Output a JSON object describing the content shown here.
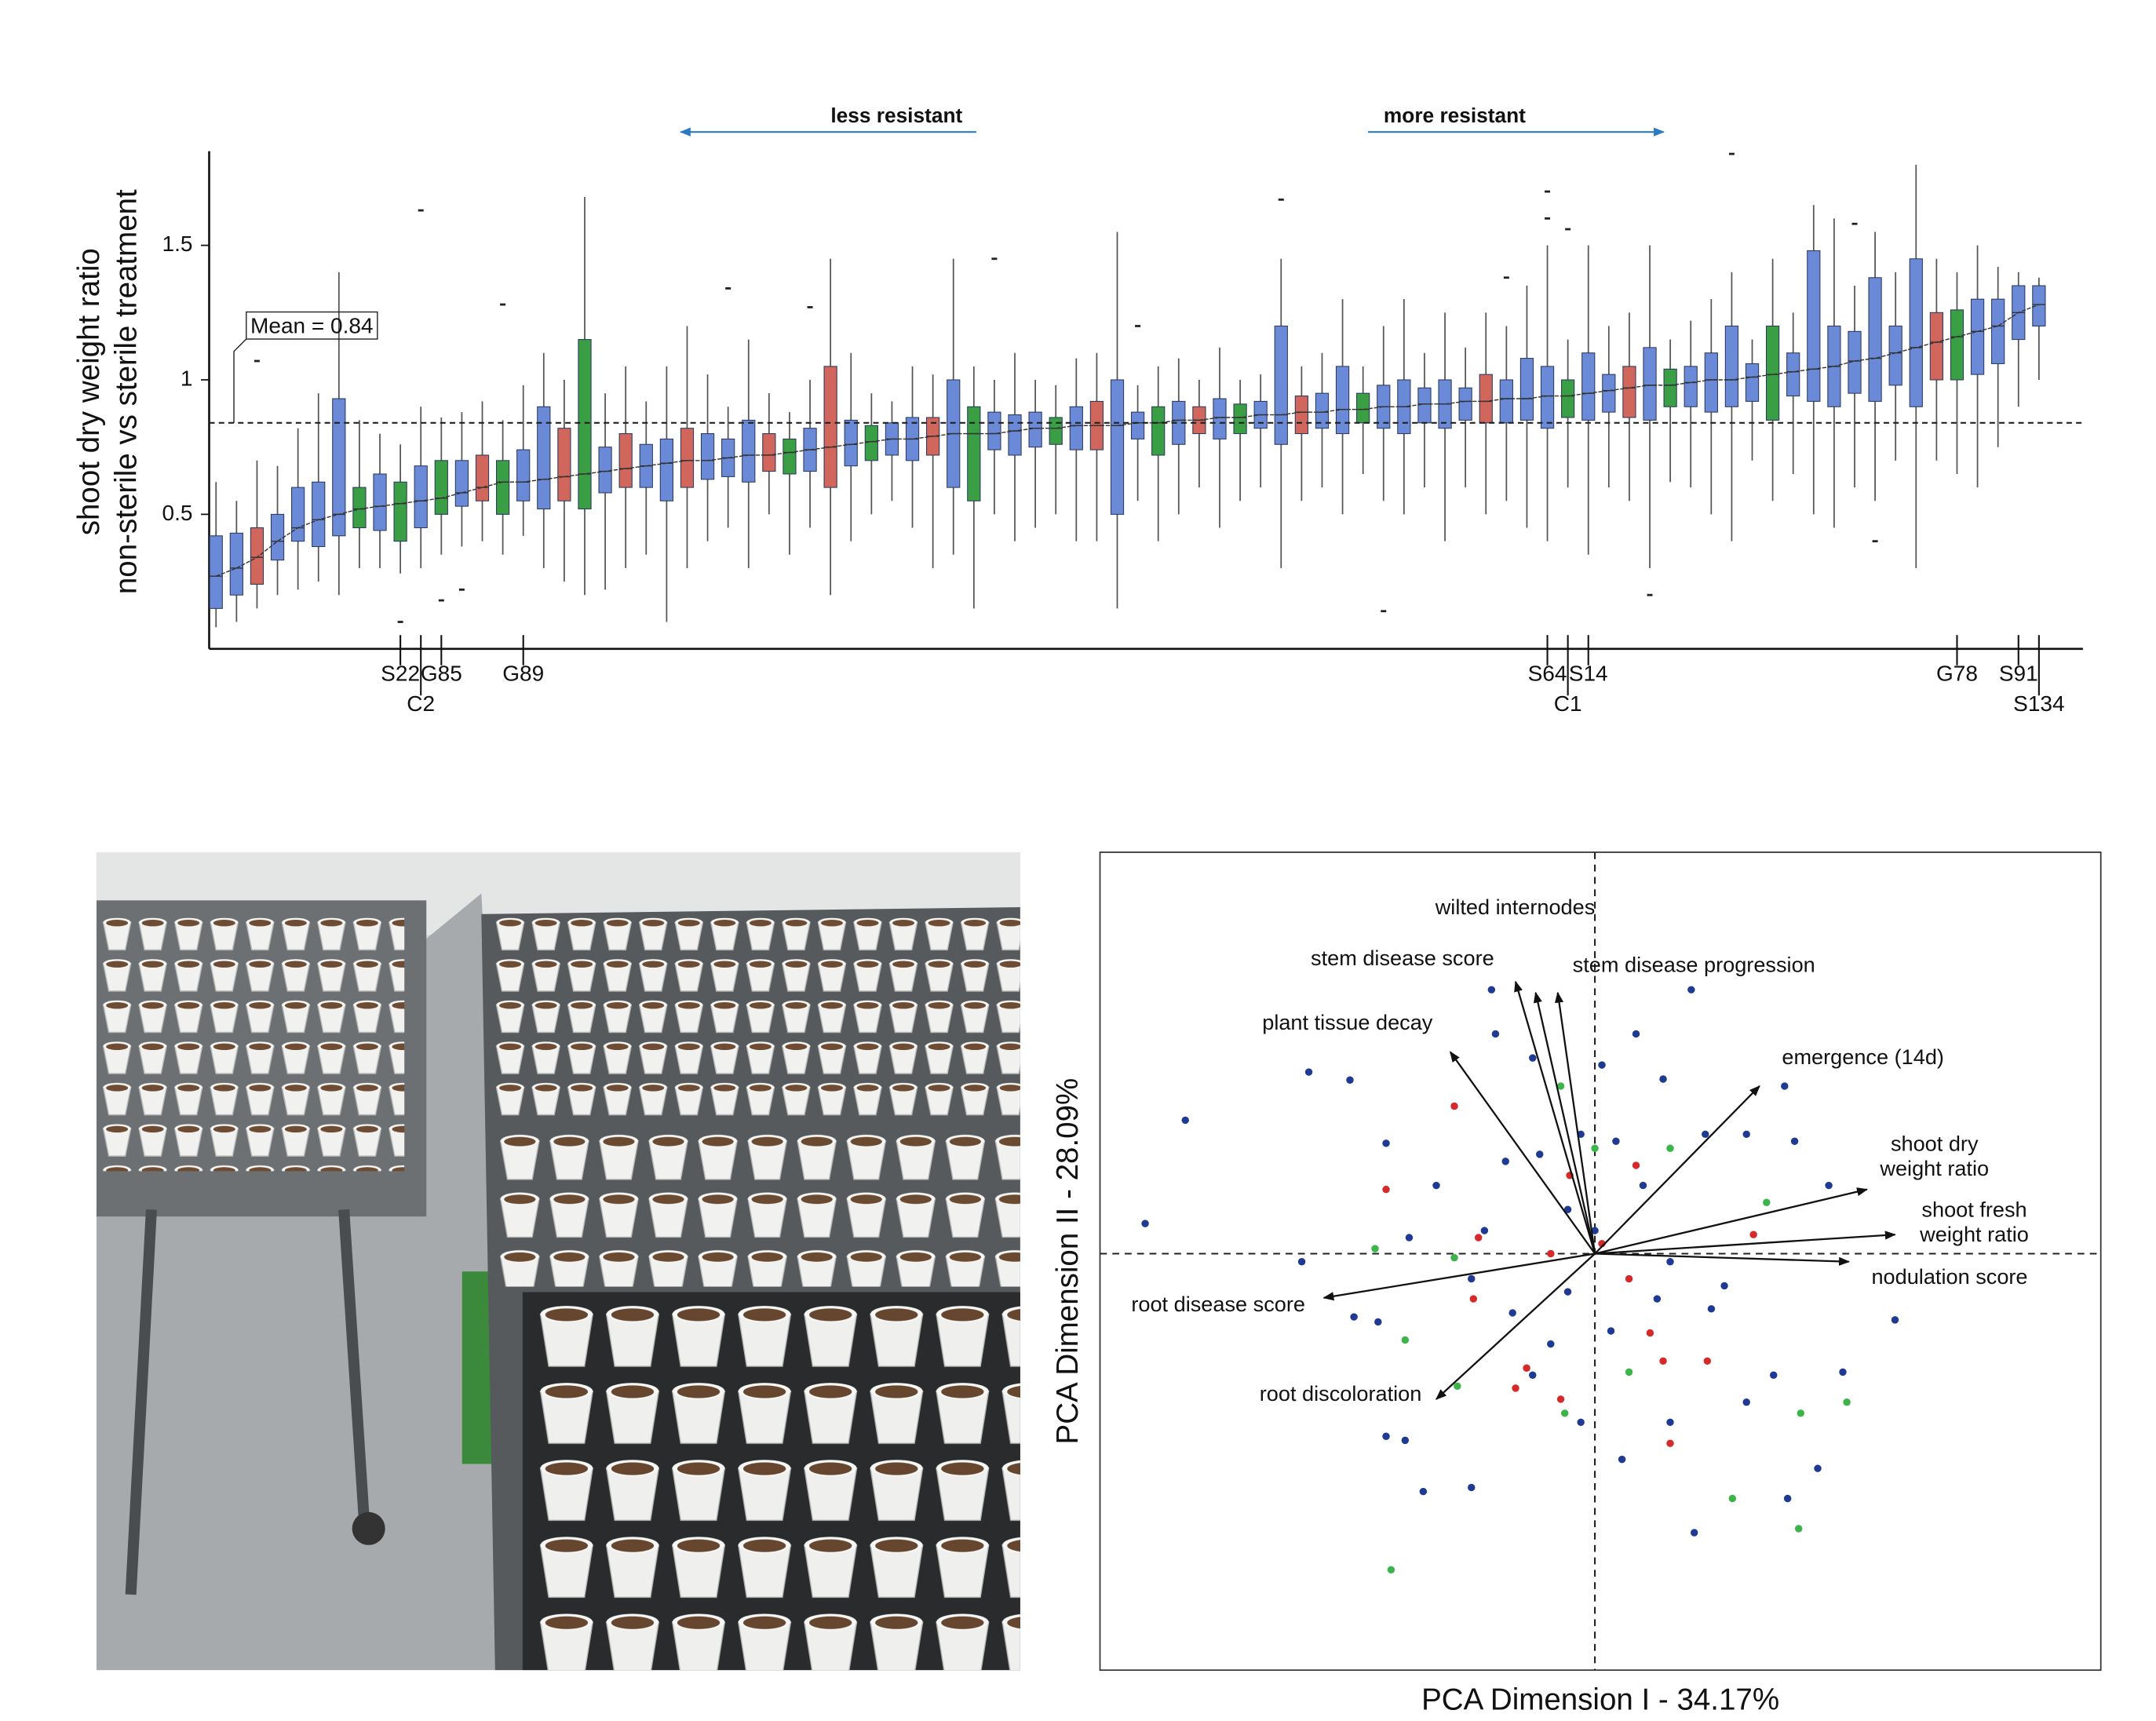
{
  "chart_data": [
    {
      "type": "box",
      "ylabel": [
        "shoot dry weight ratio",
        "non-sterile vs sterile treatment"
      ],
      "ylim": [
        0,
        1.85
      ],
      "yticks": [
        0.5,
        1,
        1.5
      ],
      "mean": 0.84,
      "mean_label": "Mean = 0.84",
      "annotations": [
        "less resistant",
        "more resistant"
      ],
      "annotation_color": "#2a7bc4",
      "palette": [
        "#6a8ad8",
        "#d0665c",
        "#3a9e45"
      ],
      "categories": [
        null,
        null,
        null,
        null,
        null,
        null,
        null,
        null,
        null,
        "S22",
        "C2",
        "G85",
        null,
        null,
        null,
        "G89",
        null,
        null,
        null,
        null,
        null,
        null,
        null,
        null,
        null,
        null,
        null,
        null,
        null,
        null,
        null,
        null,
        null,
        null,
        null,
        null,
        null,
        null,
        null,
        null,
        null,
        null,
        null,
        null,
        null,
        null,
        null,
        null,
        null,
        null,
        null,
        null,
        null,
        null,
        null,
        null,
        null,
        null,
        null,
        null,
        null,
        null,
        null,
        null,
        null,
        "S64",
        "C1",
        "S14",
        null,
        null,
        null,
        null,
        null,
        null,
        null,
        null,
        null,
        null,
        null,
        null,
        null,
        null,
        null,
        null,
        null,
        "G78",
        null,
        null,
        "S91",
        "S134"
      ],
      "boxes": [
        [
          0.08,
          0.15,
          0.27,
          0.42,
          0.62
        ],
        [
          0.1,
          0.2,
          0.3,
          0.43,
          0.55
        ],
        [
          0.15,
          0.24,
          0.34,
          0.45,
          0.7
        ],
        [
          0.2,
          0.33,
          0.4,
          0.5,
          0.68
        ],
        [
          0.22,
          0.4,
          0.45,
          0.6,
          0.82
        ],
        [
          0.25,
          0.38,
          0.48,
          0.62,
          0.95
        ],
        [
          0.2,
          0.42,
          0.5,
          0.93,
          1.4
        ],
        [
          0.3,
          0.45,
          0.52,
          0.6,
          0.85
        ],
        [
          0.3,
          0.44,
          0.53,
          0.65,
          0.8
        ],
        [
          0.28,
          0.4,
          0.54,
          0.62,
          0.76
        ],
        [
          0.3,
          0.45,
          0.55,
          0.68,
          0.9
        ],
        [
          0.35,
          0.5,
          0.56,
          0.7,
          0.86
        ],
        [
          0.38,
          0.53,
          0.58,
          0.7,
          0.88
        ],
        [
          0.4,
          0.55,
          0.6,
          0.72,
          0.92
        ],
        [
          0.35,
          0.5,
          0.62,
          0.7,
          0.85
        ],
        [
          0.42,
          0.55,
          0.62,
          0.74,
          0.98
        ],
        [
          0.3,
          0.52,
          0.63,
          0.9,
          1.1
        ],
        [
          0.25,
          0.55,
          0.64,
          0.82,
          1.0
        ],
        [
          0.2,
          0.52,
          0.65,
          1.15,
          1.68
        ],
        [
          0.22,
          0.58,
          0.66,
          0.75,
          0.95
        ],
        [
          0.3,
          0.6,
          0.67,
          0.8,
          1.05
        ],
        [
          0.35,
          0.6,
          0.68,
          0.76,
          0.92
        ],
        [
          0.1,
          0.55,
          0.69,
          0.78,
          1.05
        ],
        [
          0.3,
          0.6,
          0.7,
          0.82,
          1.2
        ],
        [
          0.4,
          0.63,
          0.7,
          0.8,
          1.02
        ],
        [
          0.45,
          0.64,
          0.71,
          0.78,
          0.9
        ],
        [
          0.3,
          0.62,
          0.72,
          0.85,
          1.15
        ],
        [
          0.5,
          0.66,
          0.72,
          0.8,
          0.95
        ],
        [
          0.35,
          0.65,
          0.73,
          0.78,
          0.88
        ],
        [
          0.45,
          0.66,
          0.74,
          0.82,
          1.0
        ],
        [
          0.2,
          0.6,
          0.75,
          1.05,
          1.45
        ],
        [
          0.4,
          0.68,
          0.76,
          0.85,
          1.1
        ],
        [
          0.5,
          0.7,
          0.77,
          0.83,
          0.95
        ],
        [
          0.55,
          0.72,
          0.78,
          0.84,
          0.92
        ],
        [
          0.45,
          0.7,
          0.78,
          0.86,
          1.05
        ],
        [
          0.3,
          0.72,
          0.79,
          0.86,
          1.02
        ],
        [
          0.35,
          0.6,
          0.8,
          1.0,
          1.45
        ],
        [
          0.15,
          0.55,
          0.8,
          0.9,
          1.05
        ],
        [
          0.5,
          0.74,
          0.8,
          0.88,
          1.0
        ],
        [
          0.4,
          0.72,
          0.81,
          0.87,
          1.1
        ],
        [
          0.45,
          0.75,
          0.82,
          0.88,
          1.0
        ],
        [
          0.5,
          0.76,
          0.82,
          0.86,
          0.98
        ],
        [
          0.4,
          0.74,
          0.83,
          0.9,
          1.08
        ],
        [
          0.4,
          0.74,
          0.83,
          0.92,
          1.1
        ],
        [
          0.15,
          0.5,
          0.83,
          1.0,
          1.55
        ],
        [
          0.55,
          0.78,
          0.84,
          0.88,
          0.98
        ],
        [
          0.4,
          0.72,
          0.84,
          0.9,
          1.05
        ],
        [
          0.5,
          0.76,
          0.85,
          0.92,
          1.08
        ],
        [
          0.6,
          0.8,
          0.85,
          0.9,
          1.0
        ],
        [
          0.45,
          0.78,
          0.86,
          0.93,
          1.12
        ],
        [
          0.55,
          0.8,
          0.86,
          0.91,
          1.0
        ],
        [
          0.6,
          0.82,
          0.87,
          0.92,
          1.02
        ],
        [
          0.3,
          0.76,
          0.87,
          1.2,
          1.45
        ],
        [
          0.55,
          0.8,
          0.88,
          0.94,
          1.05
        ],
        [
          0.6,
          0.82,
          0.88,
          0.95,
          1.1
        ],
        [
          0.5,
          0.8,
          0.89,
          1.05,
          1.3
        ],
        [
          0.65,
          0.84,
          0.89,
          0.95,
          1.05
        ],
        [
          0.55,
          0.82,
          0.9,
          0.98,
          1.2
        ],
        [
          0.5,
          0.8,
          0.9,
          1.0,
          1.3
        ],
        [
          0.6,
          0.84,
          0.91,
          0.97,
          1.1
        ],
        [
          0.4,
          0.82,
          0.91,
          1.0,
          1.25
        ],
        [
          0.6,
          0.85,
          0.92,
          0.97,
          1.12
        ],
        [
          0.5,
          0.84,
          0.92,
          1.02,
          1.25
        ],
        [
          0.55,
          0.84,
          0.93,
          1.0,
          1.2
        ],
        [
          0.45,
          0.85,
          0.93,
          1.08,
          1.35
        ],
        [
          0.4,
          0.82,
          0.94,
          1.05,
          1.5
        ],
        [
          0.6,
          0.86,
          0.94,
          1.0,
          1.15
        ],
        [
          0.35,
          0.85,
          0.95,
          1.1,
          1.5
        ],
        [
          0.6,
          0.88,
          0.96,
          1.02,
          1.2
        ],
        [
          0.55,
          0.86,
          0.97,
          1.05,
          1.25
        ],
        [
          0.3,
          0.85,
          0.98,
          1.12,
          1.5
        ],
        [
          0.62,
          0.9,
          0.98,
          1.04,
          1.15
        ],
        [
          0.6,
          0.9,
          0.99,
          1.05,
          1.22
        ],
        [
          0.5,
          0.88,
          1.0,
          1.1,
          1.3
        ],
        [
          0.4,
          0.9,
          1.0,
          1.2,
          1.4
        ],
        [
          0.7,
          0.92,
          1.01,
          1.06,
          1.15
        ],
        [
          0.55,
          0.85,
          1.02,
          1.2,
          1.45
        ],
        [
          0.65,
          0.94,
          1.03,
          1.1,
          1.25
        ],
        [
          0.5,
          0.92,
          1.04,
          1.48,
          1.65
        ],
        [
          0.45,
          0.9,
          1.05,
          1.2,
          1.6
        ],
        [
          0.6,
          0.95,
          1.07,
          1.18,
          1.35
        ],
        [
          0.55,
          0.92,
          1.08,
          1.38,
          1.55
        ],
        [
          0.7,
          0.98,
          1.1,
          1.2,
          1.4
        ],
        [
          0.3,
          0.9,
          1.12,
          1.45,
          1.8
        ],
        [
          0.7,
          1.0,
          1.14,
          1.25,
          1.45
        ],
        [
          0.65,
          1.0,
          1.16,
          1.26,
          1.4
        ],
        [
          0.6,
          1.02,
          1.18,
          1.3,
          1.5
        ],
        [
          0.75,
          1.06,
          1.2,
          1.3,
          1.42
        ],
        [
          0.9,
          1.15,
          1.25,
          1.35,
          1.4
        ],
        [
          1.0,
          1.2,
          1.28,
          1.35,
          1.38
        ]
      ],
      "box_color": [
        0,
        0,
        1,
        0,
        0,
        0,
        0,
        2,
        0,
        2,
        0,
        2,
        0,
        1,
        2,
        0,
        0,
        1,
        2,
        0,
        1,
        0,
        0,
        1,
        0,
        0,
        0,
        1,
        2,
        0,
        1,
        0,
        2,
        0,
        0,
        1,
        0,
        2,
        0,
        0,
        0,
        2,
        0,
        1,
        0,
        0,
        2,
        0,
        1,
        0,
        2,
        0,
        0,
        1,
        0,
        0,
        2,
        0,
        0,
        0,
        0,
        0,
        1,
        0,
        0,
        0,
        2,
        0,
        0,
        1,
        0,
        2,
        0,
        0,
        0,
        0,
        2,
        0,
        0,
        0,
        0,
        0,
        0,
        0,
        1,
        2,
        0,
        0,
        0,
        0
      ],
      "outliers": [
        [
          2,
          1.07
        ],
        [
          9,
          0.1
        ],
        [
          10,
          1.63
        ],
        [
          11,
          0.18
        ],
        [
          12,
          0.22
        ],
        [
          14,
          1.28
        ],
        [
          25,
          1.34
        ],
        [
          29,
          1.27
        ],
        [
          38,
          1.45
        ],
        [
          45,
          1.2
        ],
        [
          52,
          1.67
        ],
        [
          57,
          0.14
        ],
        [
          63,
          1.38
        ],
        [
          65,
          1.7
        ],
        [
          65,
          1.6
        ],
        [
          66,
          1.56
        ],
        [
          70,
          0.2
        ],
        [
          74,
          1.84
        ],
        [
          80,
          1.58
        ],
        [
          81,
          0.4
        ]
      ]
    },
    {
      "type": "scatter",
      "xlabel": "PCA Dimension I - 34.17%",
      "ylabel": "PCA Dimension II - 28.09%",
      "xlim": [
        -4.93,
        5.04
      ],
      "ylim": [
        -4.15,
        4.0
      ],
      "series": [
        {
          "color": "#1f3a93",
          "x": [
            -4.48,
            -4.08,
            -2.85,
            -2.44,
            -2.08,
            -1.58,
            -2.92,
            -2.4,
            -2.08,
            -1.89,
            -1.71,
            -1.23,
            -1.03,
            -0.99,
            -0.62,
            -0.27,
            0.07,
            0.41,
            0.96,
            0.68,
            1.1,
            1.51,
            1.89,
            1.99,
            2.33,
            2.99,
            2.47,
            2.22,
            1.92,
            0.99,
            0.27,
            -0.14,
            -0.44,
            -0.82,
            -1.23,
            -1.1,
            -0.55,
            0.48,
            0.75,
            1.16,
            1.51,
            1.78,
            0.75,
            0.62,
            0.16,
            -0.27,
            -1.85,
            -2.16,
            -0.62,
            1.29,
            0,
            0.21,
            -0.89,
            -0.14
          ],
          "y": [
            0.3,
            1.33,
            1.81,
            1.73,
            1.1,
            0.68,
            -0.08,
            -0.63,
            -1.82,
            -1.86,
            -2.37,
            -2.33,
            2.63,
            2.19,
            1.95,
            0.44,
            1.88,
            2.19,
            2.63,
            1.74,
            1.19,
            1.19,
            1.67,
            1.12,
            0.68,
            -0.66,
            -1.18,
            -2.14,
            -2.44,
            -2.78,
            -2.05,
            -1.68,
            -0.9,
            -0.59,
            -0.25,
            0.23,
            0.99,
            0.68,
            -0.08,
            -0.55,
            -1.48,
            -1.21,
            -1.68,
            -0.45,
            -0.77,
            -0.38,
            0.16,
            -0.68,
            -1.21,
            -0.32,
            0.23,
            1.12,
            0.92,
            1.19
          ]
        },
        {
          "color": "#d42a2a",
          "x": [
            -1.4,
            -2.08,
            -1.16,
            -1.21,
            -0.68,
            -0.25,
            0.41,
            0.34,
            0.55,
            0.68,
            1.12,
            0.75,
            1.58,
            -0.44,
            0.07,
            -0.34,
            -0.79
          ],
          "y": [
            1.47,
            0.64,
            0.16,
            -0.45,
            -1.14,
            0.78,
            0.88,
            -0.25,
            -0.79,
            -1.07,
            -1.07,
            -1.89,
            0.19,
            0,
            0.1,
            -1.45,
            -1.34
          ]
        },
        {
          "color": "#3cb44b",
          "x": [
            -2.03,
            -2.19,
            -1.4,
            -1.89,
            -1.37,
            -0.3,
            0.34,
            1.37,
            2.03,
            2.51,
            2.05,
            0.75,
            1.71,
            0,
            -0.34
          ],
          "y": [
            -3.15,
            0.05,
            -0.04,
            -0.86,
            -1.32,
            -1.59,
            -1.18,
            -2.44,
            -2.74,
            -1.48,
            -1.59,
            1.05,
            0.51,
            1.05,
            1.67
          ]
        }
      ],
      "vectors": [
        {
          "label": [
            "wilted internodes"
          ],
          "x": -0.59,
          "y": 2.6
        },
        {
          "label": [
            "stem disease score"
          ],
          "x": -0.79,
          "y": 2.71
        },
        {
          "label": [
            "stem disease progression"
          ],
          "x": -0.37,
          "y": 2.6
        },
        {
          "label": [
            "plant tissue decay"
          ],
          "x": -1.44,
          "y": 2.01
        },
        {
          "label": [
            "emergence (14d)"
          ],
          "x": 1.64,
          "y": 1.67
        },
        {
          "label": [
            "shoot dry",
            "weight ratio"
          ],
          "x": 2.71,
          "y": 0.64
        },
        {
          "label": [
            "shoot fresh",
            "weight ratio"
          ],
          "x": 2.99,
          "y": 0.19
        },
        {
          "label": [
            "nodulation score"
          ],
          "x": 2.53,
          "y": -0.08
        },
        {
          "label": [
            "root disease score"
          ],
          "x": -2.7,
          "y": -0.44
        },
        {
          "label": [
            "root discoloration"
          ],
          "x": -1.58,
          "y": -1.45
        }
      ]
    }
  ]
}
